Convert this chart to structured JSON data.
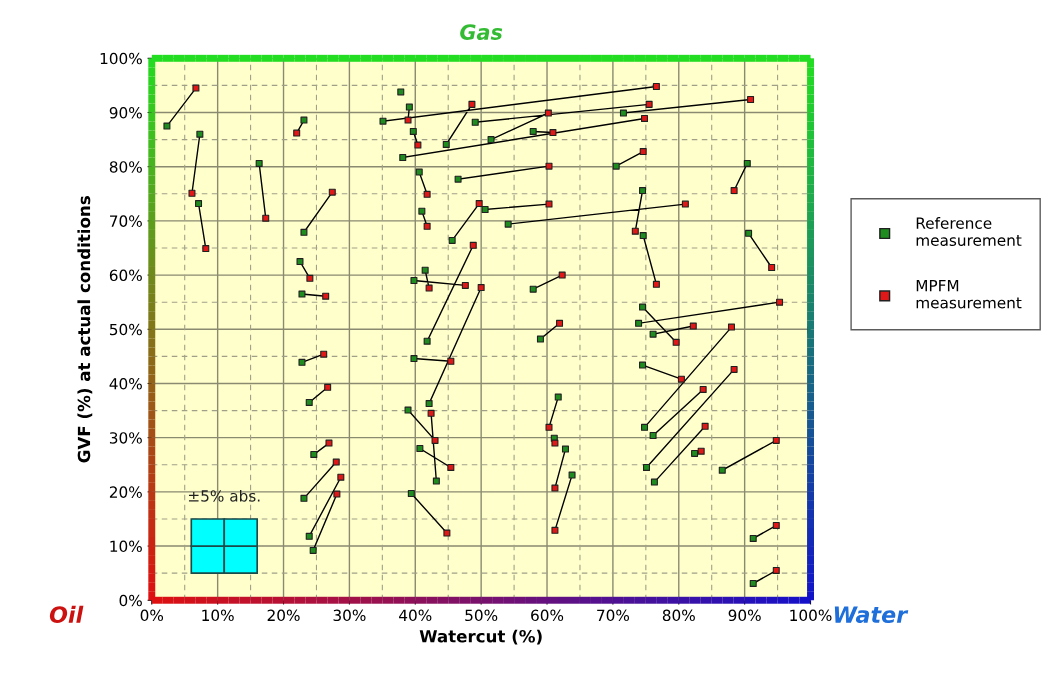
{
  "chart_data": {
    "type": "scatter",
    "xlabel": "Watercut (%)",
    "ylabel": "GVF (%) at actual conditions",
    "annotations": [
      "Gas",
      "Oil",
      "Water",
      "±5% abs."
    ],
    "xlim": [
      0,
      100
    ],
    "ylim": [
      0,
      100
    ],
    "xticks": [
      {
        "value": 0,
        "label": "0%"
      },
      {
        "value": 10,
        "label": "10%"
      },
      {
        "value": 20,
        "label": "20%"
      },
      {
        "value": 30,
        "label": "30%"
      },
      {
        "value": 40,
        "label": "40%"
      },
      {
        "value": 50,
        "label": "50%"
      },
      {
        "value": 60,
        "label": "60%"
      },
      {
        "value": 70,
        "label": "70%"
      },
      {
        "value": 80,
        "label": "80%"
      },
      {
        "value": 90,
        "label": "90%"
      },
      {
        "value": 100,
        "label": "100%"
      }
    ],
    "yticks": [
      {
        "value": 0,
        "label": "0%"
      },
      {
        "value": 10,
        "label": "10%"
      },
      {
        "value": 20,
        "label": "20%"
      },
      {
        "value": 30,
        "label": "30%"
      },
      {
        "value": 40,
        "label": "40%"
      },
      {
        "value": 50,
        "label": "50%"
      },
      {
        "value": 60,
        "label": "60%"
      },
      {
        "value": 70,
        "label": "70%"
      },
      {
        "value": 80,
        "label": "80%"
      },
      {
        "value": 90,
        "label": "90%"
      },
      {
        "value": 100,
        "label": "100%"
      }
    ],
    "grid": true,
    "legend": "right",
    "marker": "square",
    "series": [
      {
        "type": "line",
        "color": "#000000",
        "marker": "none",
        "line_style": "solid",
        "x": [
          2.3,
          6.7,
          null,
          7.3,
          6.1,
          null,
          7.1,
          8.2,
          null,
          16.3,
          17.3,
          null,
          23.1,
          22.0,
          null,
          23.1,
          27.4,
          null,
          22.5,
          24.0,
          null,
          22.8,
          26.4,
          null,
          22.8,
          26.1,
          null,
          23.9,
          26.7,
          null,
          24.6,
          26.9,
          null,
          23.1,
          28.0,
          null,
          23.9,
          28.7,
          null,
          24.5,
          28.1,
          null,
          41.8,
          48.8,
          null,
          42.1,
          50.0,
          null,
          39.8,
          45.4,
          null,
          38.9,
          43.0,
          null,
          43.2,
          42.4,
          null,
          40.7,
          45.4,
          null,
          39.4,
          44.8,
          null,
          35.1,
          76.6,
          null,
          39.1,
          38.9,
          null,
          39.7,
          40.4,
          null,
          44.7,
          48.6,
          null,
          38.1,
          74.8,
          null,
          51.5,
          60.2,
          null,
          57.9,
          60.9,
          null,
          49.1,
          75.5,
          null,
          71.6,
          90.9,
          null,
          46.5,
          60.3,
          null,
          70.5,
          74.6,
          null,
          90.4,
          88.4,
          null,
          45.6,
          49.7,
          null,
          50.6,
          60.3,
          null,
          54.1,
          81.0,
          null,
          74.5,
          73.4,
          null,
          74.6,
          76.6,
          null,
          90.6,
          94.1,
          null,
          57.9,
          62.3,
          null,
          73.9,
          95.3,
          null,
          74.5,
          79.6,
          null,
          40.6,
          41.8,
          null,
          41.0,
          41.8,
          null,
          41.5,
          42.1,
          null,
          39.8,
          47.6,
          null,
          59.0,
          61.9,
          null,
          76.1,
          82.2,
          null,
          74.8,
          88.0,
          null,
          74.5,
          80.4,
          null,
          76.1,
          83.7,
          null,
          75.1,
          88.4,
          null,
          76.3,
          84.0,
          null,
          82.4,
          83.4,
          null,
          86.6,
          94.8,
          null,
          61.7,
          60.3,
          null,
          61.1,
          61.2,
          null,
          62.8,
          61.2,
          null,
          63.8,
          61.2,
          null,
          91.3,
          94.8
        ],
        "values": [
          87.5,
          94.5,
          null,
          86.0,
          75.1,
          null,
          73.2,
          64.9,
          null,
          80.6,
          70.5,
          null,
          88.6,
          86.2,
          null,
          67.9,
          75.3,
          null,
          62.5,
          59.4,
          null,
          56.5,
          56.1,
          null,
          43.9,
          45.4,
          null,
          36.5,
          39.3,
          null,
          26.9,
          29.0,
          null,
          18.8,
          25.5,
          null,
          11.8,
          22.7,
          null,
          9.2,
          19.6,
          null,
          47.8,
          65.5,
          null,
          36.3,
          57.7,
          null,
          44.6,
          44.1,
          null,
          35.1,
          29.5,
          null,
          22.0,
          34.5,
          null,
          28.0,
          24.5,
          null,
          19.7,
          12.4,
          null,
          88.4,
          94.8,
          null,
          91.0,
          88.6,
          null,
          86.5,
          84.0,
          null,
          84.1,
          91.5,
          null,
          81.7,
          88.9,
          null,
          85.0,
          89.9,
          null,
          86.5,
          86.3,
          null,
          88.2,
          91.5,
          null,
          89.9,
          92.4,
          null,
          77.7,
          80.1,
          null,
          80.1,
          82.8,
          null,
          80.6,
          75.6,
          null,
          66.4,
          73.2,
          null,
          72.1,
          73.1,
          null,
          69.4,
          73.1,
          null,
          75.6,
          68.1,
          null,
          67.3,
          58.3,
          null,
          67.7,
          61.4,
          null,
          57.4,
          60.0,
          null,
          51.1,
          55.0,
          null,
          54.1,
          47.6,
          null,
          79.0,
          74.9,
          null,
          71.8,
          69.0,
          null,
          60.9,
          57.6,
          null,
          59.0,
          58.1,
          null,
          48.2,
          51.1,
          null,
          49.1,
          50.6,
          null,
          31.9,
          50.4,
          null,
          43.4,
          40.8,
          null,
          30.4,
          38.9,
          null,
          24.5,
          42.6,
          null,
          21.8,
          32.1,
          null,
          27.1,
          27.5,
          null,
          24.0,
          29.5,
          null,
          37.5,
          31.9,
          null,
          29.9,
          29.0,
          null,
          27.9,
          20.7,
          null,
          23.1,
          12.9,
          null,
          11.4,
          13.8
        ]
      },
      {
        "type": "line",
        "color": "#000000",
        "marker": "none",
        "line_style": "solid",
        "x": [
          91.3,
          94.8
        ],
        "values": [
          3.1,
          5.5
        ]
      },
      {
        "name": "Reference measurement",
        "color": "#1e8c1e",
        "x": [
          2.3,
          7.3,
          7.1,
          16.3,
          23.1,
          23.1,
          22.5,
          22.8,
          22.8,
          23.9,
          24.6,
          23.1,
          23.9,
          24.5,
          41.8,
          42.1,
          39.8,
          38.9,
          43.2,
          40.7,
          39.4,
          37.8,
          35.1,
          39.1,
          39.7,
          44.7,
          38.1,
          51.5,
          57.9,
          49.1,
          71.6,
          46.5,
          70.5,
          90.4,
          45.6,
          50.6,
          54.1,
          74.5,
          74.6,
          90.6,
          57.9,
          73.9,
          74.5,
          40.6,
          41.0,
          41.5,
          39.8,
          59.0,
          76.1,
          74.8,
          74.5,
          76.1,
          75.1,
          76.3,
          82.4,
          86.6,
          61.7,
          61.1,
          62.8,
          63.8,
          91.3,
          91.3,
          100
        ],
        "values": [
          87.5,
          86.0,
          73.2,
          80.6,
          88.6,
          67.9,
          62.5,
          56.5,
          43.9,
          36.5,
          26.9,
          18.8,
          11.8,
          9.2,
          47.8,
          36.3,
          44.6,
          35.1,
          22.0,
          28.0,
          19.7,
          93.8,
          88.4,
          91.0,
          86.5,
          84.1,
          81.7,
          85.0,
          86.5,
          88.2,
          89.9,
          77.7,
          80.1,
          80.6,
          66.4,
          72.1,
          69.4,
          75.6,
          67.3,
          67.7,
          57.4,
          51.1,
          54.1,
          79.0,
          71.8,
          60.9,
          59.0,
          48.2,
          49.1,
          31.9,
          43.4,
          30.4,
          24.5,
          21.8,
          27.1,
          24.0,
          37.5,
          29.9,
          27.9,
          23.1,
          11.4,
          3.1,
          49.8
        ]
      },
      {
        "name": "MPFM measurement",
        "color": "#e01818",
        "x": [
          6.7,
          6.1,
          8.2,
          17.3,
          22.0,
          27.4,
          24.0,
          26.4,
          26.1,
          26.7,
          26.9,
          28.0,
          28.7,
          28.1,
          48.8,
          50.0,
          45.4,
          43.0,
          42.4,
          45.4,
          44.8,
          76.6,
          38.9,
          40.4,
          48.6,
          74.8,
          60.2,
          60.9,
          75.5,
          90.9,
          60.3,
          74.6,
          88.4,
          49.7,
          60.3,
          81.0,
          73.4,
          76.6,
          94.1,
          62.3,
          95.3,
          79.6,
          41.8,
          41.8,
          42.1,
          47.6,
          61.9,
          82.2,
          88.0,
          80.4,
          83.7,
          88.4,
          84.0,
          83.4,
          94.8,
          60.3,
          61.2,
          61.2,
          61.2,
          94.8,
          94.8
        ],
        "values": [
          94.5,
          75.1,
          64.9,
          70.5,
          86.2,
          75.3,
          59.4,
          56.1,
          45.4,
          39.3,
          29.0,
          25.5,
          22.7,
          19.6,
          65.5,
          57.7,
          44.1,
          29.5,
          34.5,
          24.5,
          12.4,
          94.8,
          88.6,
          84.0,
          91.5,
          88.9,
          89.9,
          86.3,
          91.5,
          92.4,
          80.1,
          82.8,
          75.6,
          73.2,
          73.1,
          73.1,
          68.1,
          58.3,
          61.4,
          60.0,
          55.0,
          47.6,
          74.9,
          69.0,
          57.6,
          58.1,
          51.1,
          50.6,
          50.4,
          40.8,
          38.9,
          42.6,
          32.1,
          27.5,
          29.5,
          31.9,
          29.0,
          20.7,
          12.9,
          13.8,
          5.5
        ]
      }
    ]
  }
}
